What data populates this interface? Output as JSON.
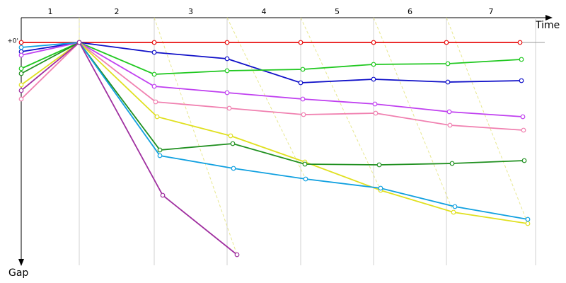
{
  "chart_data": {
    "type": "line",
    "x_label": "Time",
    "y_label": "Gap",
    "laps": [
      "1",
      "2",
      "3",
      "4",
      "5",
      "6",
      "7"
    ],
    "xgrid": [
      82,
      188,
      291,
      395,
      498,
      601,
      727
    ],
    "xlim": [
      0,
      750
    ],
    "ylim": [
      0,
      315
    ],
    "yticks": [
      {
        "value": 0,
        "label": "+0'"
      }
    ],
    "series": [
      {
        "color": "#e81010",
        "x": [
          0,
          82,
          188,
          291,
          395,
          498,
          601,
          705
        ],
        "values": [
          0,
          0,
          0,
          0,
          0,
          0,
          0,
          0
        ]
      },
      {
        "color": "#1010c8",
        "x": [
          0,
          82,
          188,
          291,
          395,
          498,
          603,
          707
        ],
        "values": [
          13,
          0,
          14,
          23,
          57,
          52,
          56,
          54
        ]
      },
      {
        "color": "#20c820",
        "x": [
          0,
          82,
          188,
          291,
          398,
          498,
          603,
          707
        ],
        "values": [
          37,
          0,
          45,
          40,
          38,
          31,
          30,
          24
        ]
      },
      {
        "color": "#c040f0",
        "x": [
          0,
          82,
          188,
          291,
          398,
          500,
          605,
          709
        ],
        "values": [
          18,
          0,
          62,
          71,
          80,
          87,
          98,
          105
        ]
      },
      {
        "color": "#f080b0",
        "x": [
          0,
          82,
          190,
          294,
          399,
          501,
          606,
          710
        ],
        "values": [
          80,
          0,
          84,
          93,
          102,
          100,
          117,
          124
        ]
      },
      {
        "color": "#e0e020",
        "x": [
          0,
          82,
          192,
          296,
          401,
          508,
          611,
          716
        ],
        "values": [
          60,
          0,
          105,
          132,
          169,
          209,
          240,
          256
        ]
      },
      {
        "color": "#209020",
        "x": [
          0,
          82,
          196,
          299,
          401,
          506,
          609,
          711
        ],
        "values": [
          44,
          0,
          152,
          143,
          172,
          173,
          171,
          167
        ]
      },
      {
        "color": "#10a0e0",
        "x": [
          0,
          82,
          196,
          300,
          402,
          508,
          613,
          716
        ],
        "values": [
          7,
          0,
          160,
          178,
          193,
          206,
          232,
          250
        ]
      },
      {
        "color": "#a030a0",
        "x": [
          0,
          82,
          200,
          305
        ],
        "values": [
          68,
          0,
          216,
          300
        ]
      }
    ]
  }
}
